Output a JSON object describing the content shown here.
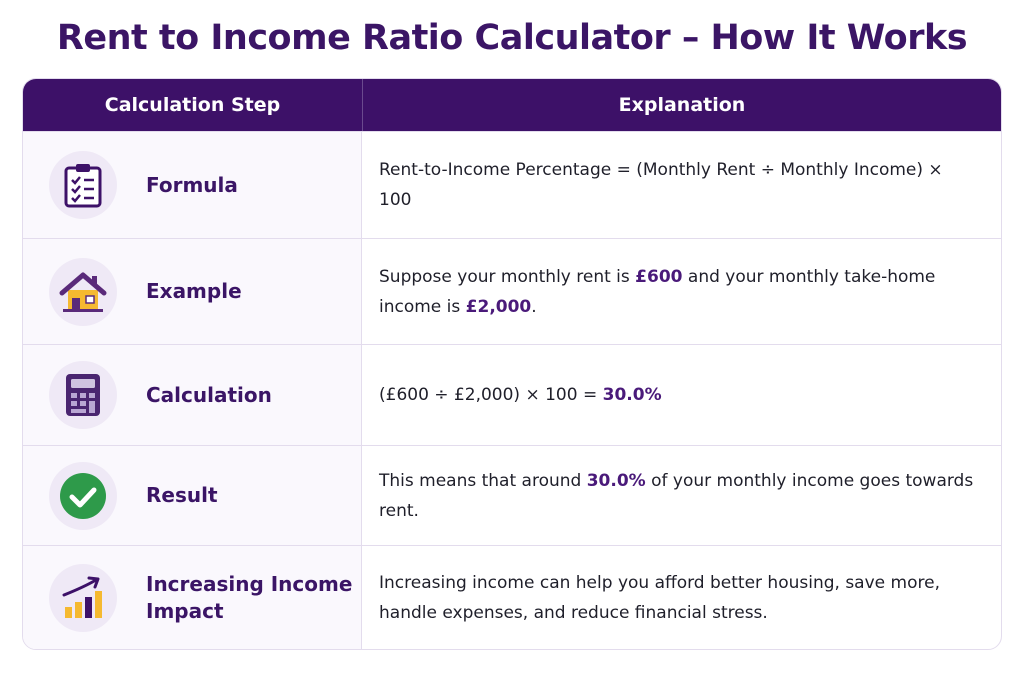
{
  "title": "Rent to Income Ratio Calculator – How It Works",
  "header": {
    "col1": "Calculation Step",
    "col2": "Explanation"
  },
  "rows": [
    {
      "icon": "clipboard-checklist-icon",
      "step": "Formula",
      "text": "Rent-to-Income Percentage = (Monthly Rent ÷ Monthly Income) × 100"
    },
    {
      "icon": "house-icon",
      "step": "Example",
      "t1": "Suppose your monthly rent is ",
      "h1": "£600",
      "t2": " and your monthly take-home income is ",
      "h2": "£2,000",
      "t3": "."
    },
    {
      "icon": "calculator-icon",
      "step": "Calculation",
      "t1": "(£600 ÷ £2,000) × 100 = ",
      "h1": "30.0%"
    },
    {
      "icon": "check-circle-icon",
      "step": "Result",
      "t1": "This means that around ",
      "h1": "30.0%",
      "t2": " of your monthly income goes towards rent."
    },
    {
      "icon": "growth-chart-icon",
      "step": "Increasing Income Impact",
      "text": "Increasing income can help you afford better housing, save more, handle expenses, and reduce financial stress."
    }
  ],
  "colors": {
    "brand": "#3d1168",
    "accent": "#4a1a7a",
    "success": "#2e9a4a",
    "house_roof": "#5a2a7a",
    "house_wall": "#f5b930"
  }
}
